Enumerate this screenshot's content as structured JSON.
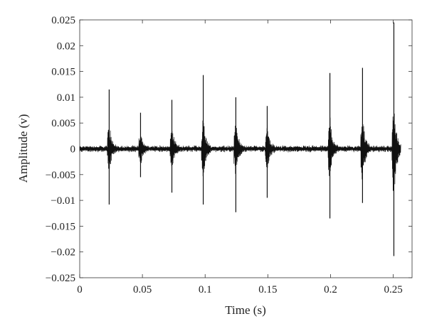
{
  "chart_data": {
    "type": "line",
    "xlabel": "Time (s)",
    "ylabel": "Amplitude (v)",
    "xlim": [
      0,
      0.265
    ],
    "ylim": [
      -0.025,
      0.025
    ],
    "xticks": [
      {
        "value": 0,
        "label": "0"
      },
      {
        "value": 0.05,
        "label": "0.05"
      },
      {
        "value": 0.1,
        "label": "0.1"
      },
      {
        "value": 0.15,
        "label": "0.15"
      },
      {
        "value": 0.2,
        "label": "0.2"
      },
      {
        "value": 0.25,
        "label": "0.25"
      }
    ],
    "yticks": [
      {
        "value": 0.025,
        "label": "0.025"
      },
      {
        "value": 0.02,
        "label": "0.02"
      },
      {
        "value": 0.015,
        "label": "0.015"
      },
      {
        "value": 0.01,
        "label": "0.01"
      },
      {
        "value": 0.005,
        "label": "0.005"
      },
      {
        "value": 0,
        "label": "0"
      },
      {
        "value": -0.005,
        "label": "−0.005"
      },
      {
        "value": -0.01,
        "label": "−0.01"
      },
      {
        "value": -0.015,
        "label": "−0.015"
      },
      {
        "value": -0.02,
        "label": "−0.02"
      },
      {
        "value": -0.025,
        "label": "−0.025"
      }
    ],
    "grid": false,
    "line_color": "#111111",
    "x_range": [
      0,
      0.256
    ],
    "noise_amplitude": 0.0005,
    "events": [
      {
        "t": 0.0235,
        "max": 0.0115,
        "min": -0.0108
      },
      {
        "t": 0.0485,
        "max": 0.007,
        "min": -0.0055
      },
      {
        "t": 0.0735,
        "max": 0.0095,
        "min": -0.0085
      },
      {
        "t": 0.0985,
        "max": 0.0143,
        "min": -0.0108
      },
      {
        "t": 0.1245,
        "max": 0.01,
        "min": -0.0123
      },
      {
        "t": 0.1495,
        "max": 0.0083,
        "min": -0.0095
      },
      {
        "t": 0.1995,
        "max": 0.0147,
        "min": -0.0135
      },
      {
        "t": 0.2255,
        "max": 0.0157,
        "min": -0.0105
      },
      {
        "t": 0.2505,
        "max": 0.0245,
        "min": -0.0208
      }
    ]
  }
}
